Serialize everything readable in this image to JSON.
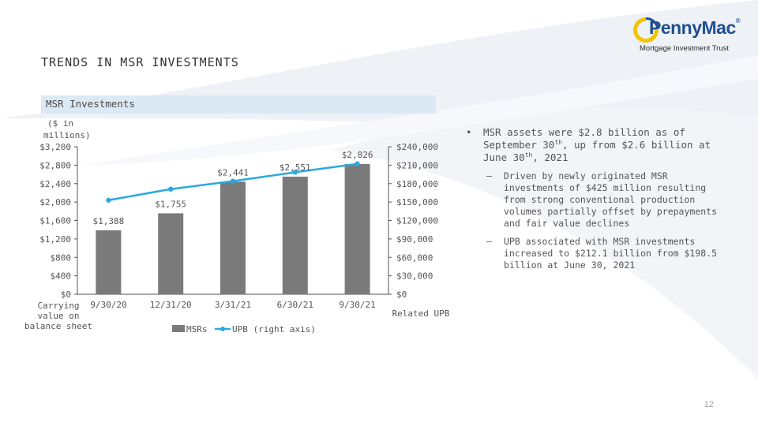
{
  "slide": {
    "title": "TRENDS IN MSR INVESTMENTS",
    "section_label": "MSR Investments",
    "page_number": "12"
  },
  "logo": {
    "brand": "PennyMac",
    "registered": "®",
    "subtitle": "Mortgage Investment Trust",
    "icon": "pennymac-swoosh-logo"
  },
  "bullets": {
    "main": {
      "p1": "MSR assets were $2.8 billion as of September 30",
      "s1": "th",
      "p2": ", up from $2.6 billion at June 30",
      "s2": "th",
      "p3": ", 2021"
    },
    "subs": [
      "Driven by newly originated MSR investments of $425 million resulting from strong conventional production volumes partially offset by prepayments and fair value declines",
      "UPB associated with MSR investments increased to $212.1 billion from $198.5 billion at June 30, 2021"
    ],
    "bullet_glyph": "•",
    "dash_glyph": "–"
  },
  "chart_data": {
    "type": "bar",
    "units_label": "($ in millions)",
    "left_axis_title": "Carrying value on balance sheet",
    "right_axis_title": "Related UPB",
    "categories": [
      "9/30/20",
      "12/31/20",
      "3/31/21",
      "6/30/21",
      "9/30/21"
    ],
    "series": [
      {
        "name": "MSRs",
        "type": "bar",
        "axis": "left",
        "values": [
          1388,
          1755,
          2441,
          2551,
          2826
        ],
        "labels": [
          "$1,388",
          "$1,755",
          "$2,441",
          "$2,551",
          "$2,826"
        ],
        "color": "#7a7a7a"
      },
      {
        "name": "UPB (right axis)",
        "type": "line",
        "axis": "right",
        "values": [
          153000,
          171000,
          184000,
          198500,
          212100
        ],
        "color": "#2aa8e0"
      }
    ],
    "left_axis": {
      "range": [
        0,
        3200
      ],
      "ticks": [
        0,
        400,
        800,
        1200,
        1600,
        2000,
        2400,
        2800,
        3200
      ],
      "tick_labels": [
        "$0",
        "$400",
        "$800",
        "$1,200",
        "$1,600",
        "$2,000",
        "$2,400",
        "$2,800",
        "$3,200"
      ]
    },
    "right_axis": {
      "range": [
        0,
        240000
      ],
      "ticks": [
        0,
        30000,
        60000,
        90000,
        120000,
        150000,
        180000,
        210000,
        240000
      ],
      "tick_labels": [
        "$0",
        "$30,000",
        "$60,000",
        "$90,000",
        "$120,000",
        "$150,000",
        "$180,000",
        "$210,000",
        "$240,000"
      ]
    },
    "legend_position": "bottom",
    "grid": false
  }
}
